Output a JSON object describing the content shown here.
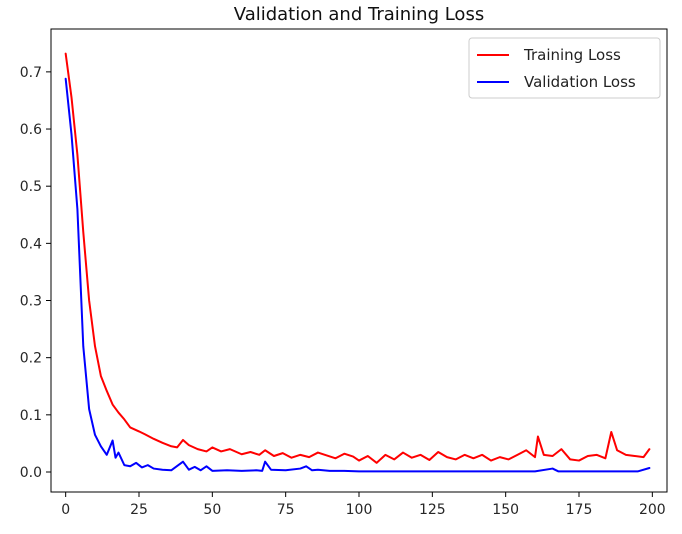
{
  "chart_data": {
    "type": "line",
    "title": "Validation and Training Loss",
    "xlabel": "",
    "ylabel": "",
    "xlim": [
      -5,
      205
    ],
    "ylim": [
      -0.035,
      0.775
    ],
    "xticks": [
      0,
      25,
      50,
      75,
      100,
      125,
      150,
      175,
      200
    ],
    "xtick_labels": [
      "0",
      "25",
      "50",
      "75",
      "100",
      "125",
      "150",
      "175",
      "200"
    ],
    "yticks": [
      0.0,
      0.1,
      0.2,
      0.3,
      0.4,
      0.5,
      0.6,
      0.7
    ],
    "ytick_labels": [
      "0.0",
      "0.1",
      "0.2",
      "0.3",
      "0.4",
      "0.5",
      "0.6",
      "0.7"
    ],
    "grid": false,
    "legend_position": "top-right",
    "series": [
      {
        "name": "Training Loss",
        "color": "#ff0000",
        "points": [
          [
            0,
            0.732
          ],
          [
            2,
            0.655
          ],
          [
            4,
            0.555
          ],
          [
            6,
            0.42
          ],
          [
            8,
            0.3
          ],
          [
            10,
            0.22
          ],
          [
            12,
            0.168
          ],
          [
            14,
            0.142
          ],
          [
            16,
            0.118
          ],
          [
            18,
            0.104
          ],
          [
            20,
            0.092
          ],
          [
            22,
            0.078
          ],
          [
            25,
            0.071
          ],
          [
            27,
            0.066
          ],
          [
            30,
            0.058
          ],
          [
            33,
            0.051
          ],
          [
            36,
            0.045
          ],
          [
            38,
            0.043
          ],
          [
            40,
            0.056
          ],
          [
            42,
            0.047
          ],
          [
            45,
            0.04
          ],
          [
            48,
            0.036
          ],
          [
            50,
            0.043
          ],
          [
            53,
            0.036
          ],
          [
            56,
            0.04
          ],
          [
            60,
            0.031
          ],
          [
            63,
            0.035
          ],
          [
            66,
            0.03
          ],
          [
            68,
            0.038
          ],
          [
            71,
            0.028
          ],
          [
            74,
            0.033
          ],
          [
            77,
            0.025
          ],
          [
            80,
            0.03
          ],
          [
            83,
            0.026
          ],
          [
            86,
            0.034
          ],
          [
            89,
            0.029
          ],
          [
            92,
            0.024
          ],
          [
            95,
            0.032
          ],
          [
            98,
            0.027
          ],
          [
            100,
            0.02
          ],
          [
            103,
            0.028
          ],
          [
            106,
            0.016
          ],
          [
            109,
            0.03
          ],
          [
            112,
            0.022
          ],
          [
            115,
            0.034
          ],
          [
            118,
            0.025
          ],
          [
            121,
            0.03
          ],
          [
            124,
            0.021
          ],
          [
            127,
            0.035
          ],
          [
            130,
            0.026
          ],
          [
            133,
            0.022
          ],
          [
            136,
            0.03
          ],
          [
            139,
            0.024
          ],
          [
            142,
            0.03
          ],
          [
            145,
            0.02
          ],
          [
            148,
            0.026
          ],
          [
            151,
            0.022
          ],
          [
            154,
            0.03
          ],
          [
            157,
            0.038
          ],
          [
            160,
            0.026
          ],
          [
            161,
            0.062
          ],
          [
            163,
            0.03
          ],
          [
            166,
            0.028
          ],
          [
            169,
            0.04
          ],
          [
            172,
            0.022
          ],
          [
            175,
            0.02
          ],
          [
            178,
            0.028
          ],
          [
            181,
            0.03
          ],
          [
            184,
            0.024
          ],
          [
            186,
            0.07
          ],
          [
            188,
            0.038
          ],
          [
            191,
            0.03
          ],
          [
            194,
            0.028
          ],
          [
            197,
            0.026
          ],
          [
            199,
            0.04
          ]
        ]
      },
      {
        "name": "Validation Loss",
        "color": "#0000ff",
        "points": [
          [
            0,
            0.688
          ],
          [
            2,
            0.59
          ],
          [
            4,
            0.46
          ],
          [
            6,
            0.22
          ],
          [
            8,
            0.11
          ],
          [
            10,
            0.065
          ],
          [
            12,
            0.045
          ],
          [
            14,
            0.03
          ],
          [
            16,
            0.055
          ],
          [
            17,
            0.025
          ],
          [
            18,
            0.034
          ],
          [
            20,
            0.012
          ],
          [
            22,
            0.01
          ],
          [
            24,
            0.016
          ],
          [
            26,
            0.008
          ],
          [
            28,
            0.012
          ],
          [
            30,
            0.006
          ],
          [
            33,
            0.004
          ],
          [
            36,
            0.003
          ],
          [
            40,
            0.018
          ],
          [
            42,
            0.004
          ],
          [
            44,
            0.009
          ],
          [
            46,
            0.003
          ],
          [
            48,
            0.01
          ],
          [
            50,
            0.002
          ],
          [
            55,
            0.003
          ],
          [
            60,
            0.002
          ],
          [
            65,
            0.003
          ],
          [
            67,
            0.002
          ],
          [
            68,
            0.018
          ],
          [
            70,
            0.004
          ],
          [
            75,
            0.003
          ],
          [
            80,
            0.006
          ],
          [
            82,
            0.01
          ],
          [
            84,
            0.003
          ],
          [
            86,
            0.004
          ],
          [
            90,
            0.002
          ],
          [
            95,
            0.002
          ],
          [
            100,
            0.001
          ],
          [
            105,
            0.001
          ],
          [
            110,
            0.001
          ],
          [
            120,
            0.001
          ],
          [
            130,
            0.001
          ],
          [
            140,
            0.001
          ],
          [
            150,
            0.001
          ],
          [
            160,
            0.001
          ],
          [
            166,
            0.006
          ],
          [
            168,
            0.001
          ],
          [
            175,
            0.001
          ],
          [
            180,
            0.001
          ],
          [
            190,
            0.001
          ],
          [
            195,
            0.001
          ],
          [
            199,
            0.007
          ]
        ]
      }
    ]
  }
}
